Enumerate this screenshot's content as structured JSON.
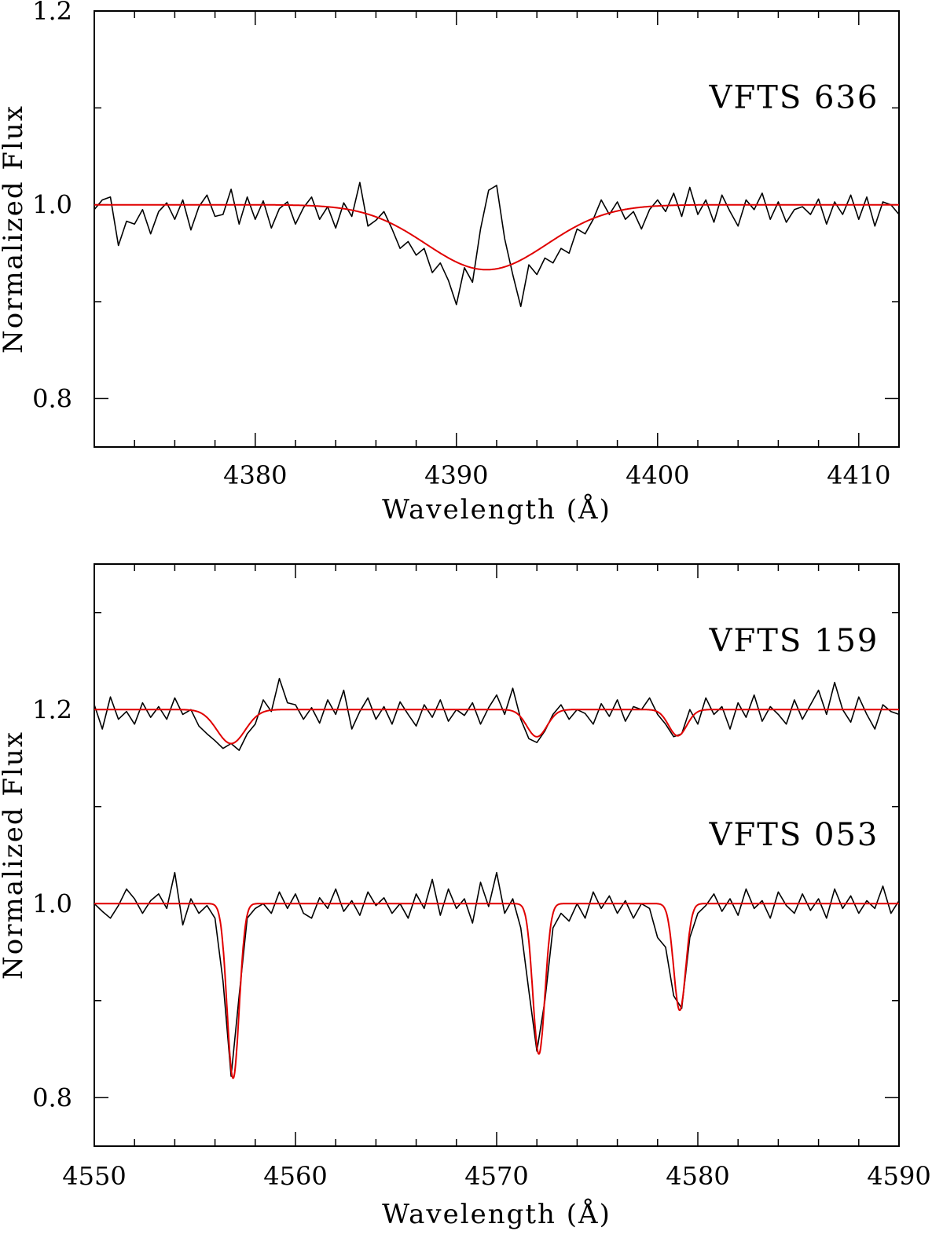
{
  "chart_data": [
    {
      "type": "line",
      "xlabel": "Wavelength (Å)",
      "ylabel": "Normalized Flux",
      "xlim": [
        4372,
        4412
      ],
      "ylim": [
        0.75,
        1.2
      ],
      "xticks": [
        4380,
        4390,
        4400,
        4410
      ],
      "xtick_labels": [
        "4380",
        "4390",
        "4400",
        "4410"
      ],
      "x_minor_step": 2,
      "yticks": [
        0.8,
        1.0,
        1.2
      ],
      "ytick_labels": [
        "0.8",
        "1.0",
        "1.2"
      ],
      "y_minor_step": 0.1,
      "grid": false,
      "annotations": [
        {
          "text": "VFTS 636",
          "x": 4411,
          "y": 1.1
        }
      ],
      "series": [
        {
          "name": "VFTS 636 observed",
          "color": "#000000",
          "x_start": 4372.0,
          "x_step": 0.4,
          "y": [
            0.995,
            1.005,
            1.008,
            0.958,
            0.983,
            0.98,
            0.995,
            0.97,
            0.993,
            1.002,
            0.985,
            1.005,
            0.974,
            0.998,
            1.01,
            0.988,
            0.99,
            1.016,
            0.98,
            1.008,
            0.985,
            1.004,
            0.976,
            0.996,
            1.003,
            0.98,
            0.997,
            1.008,
            0.985,
            0.998,
            0.976,
            1.002,
            0.988,
            1.023,
            0.978,
            0.984,
            0.993,
            0.975,
            0.955,
            0.962,
            0.948,
            0.955,
            0.93,
            0.94,
            0.922,
            0.897,
            0.935,
            0.92,
            0.975,
            1.015,
            1.02,
            0.965,
            0.928,
            0.895,
            0.938,
            0.928,
            0.945,
            0.94,
            0.955,
            0.95,
            0.975,
            0.97,
            0.985,
            1.005,
            0.99,
            1.003,
            0.985,
            0.993,
            0.975,
            0.995,
            1.005,
            0.993,
            1.012,
            0.988,
            1.018,
            0.99,
            1.005,
            0.982,
            1.01,
            0.993,
            0.978,
            1.005,
            0.995,
            1.012,
            0.985,
            1.003,
            0.982,
            0.995,
            0.998,
            0.99,
            1.006,
            0.98,
            1.003,
            0.99,
            1.01,
            0.985,
            1.008,
            0.978,
            1.003,
            1.0,
            0.99
          ]
        },
        {
          "name": "VFTS 636 model",
          "color": "#e00000",
          "continuum": 1.0,
          "lines": [
            {
              "center": 4391.5,
              "depth": 0.067,
              "sigma": 3.0
            }
          ]
        }
      ]
    },
    {
      "type": "line",
      "xlabel": "Wavelength (Å)",
      "ylabel": "Normalized Flux",
      "xlim": [
        4550,
        4590
      ],
      "ylim": [
        0.75,
        1.35
      ],
      "xticks": [
        4550,
        4560,
        4570,
        4580,
        4590
      ],
      "xtick_labels": [
        "4550",
        "4560",
        "4570",
        "4580",
        "4590"
      ],
      "x_minor_step": 2,
      "yticks": [
        0.8,
        1.0,
        1.2
      ],
      "ytick_labels": [
        "0.8",
        "1.0",
        "1.2"
      ],
      "y_minor_step": 0.1,
      "grid": false,
      "annotations": [
        {
          "text": "VFTS 159",
          "x": 4589,
          "y": 1.26
        },
        {
          "text": "VFTS 053",
          "x": 4589,
          "y": 1.06
        }
      ],
      "series": [
        {
          "name": "VFTS 159 observed",
          "color": "#000000",
          "x_start": 4550.0,
          "x_step": 0.4,
          "y": [
            1.205,
            1.18,
            1.213,
            1.19,
            1.198,
            1.185,
            1.207,
            1.192,
            1.203,
            1.19,
            1.212,
            1.195,
            1.2,
            1.183,
            1.175,
            1.168,
            1.16,
            1.165,
            1.158,
            1.175,
            1.185,
            1.21,
            1.198,
            1.232,
            1.207,
            1.205,
            1.19,
            1.202,
            1.186,
            1.21,
            1.195,
            1.22,
            1.18,
            1.198,
            1.212,
            1.19,
            1.203,
            1.185,
            1.208,
            1.195,
            1.183,
            1.205,
            1.192,
            1.21,
            1.188,
            1.2,
            1.194,
            1.207,
            1.185,
            1.202,
            1.215,
            1.195,
            1.222,
            1.19,
            1.17,
            1.166,
            1.178,
            1.195,
            1.205,
            1.19,
            1.2,
            1.196,
            1.185,
            1.206,
            1.193,
            1.21,
            1.188,
            1.203,
            1.2,
            1.212,
            1.195,
            1.185,
            1.172,
            1.175,
            1.2,
            1.185,
            1.212,
            1.195,
            1.203,
            1.18,
            1.207,
            1.192,
            1.215,
            1.188,
            1.203,
            1.195,
            1.185,
            1.21,
            1.19,
            1.205,
            1.22,
            1.195,
            1.228,
            1.2,
            1.187,
            1.213,
            1.195,
            1.18,
            1.205,
            1.198,
            1.195
          ]
        },
        {
          "name": "VFTS 159 model",
          "color": "#e00000",
          "continuum": 1.2,
          "lines": [
            {
              "center": 4556.8,
              "depth": 0.035,
              "sigma": 0.7
            },
            {
              "center": 4572.0,
              "depth": 0.028,
              "sigma": 0.5
            },
            {
              "center": 4579.0,
              "depth": 0.027,
              "sigma": 0.45
            }
          ]
        },
        {
          "name": "VFTS 053 observed",
          "color": "#000000",
          "x_start": 4550.0,
          "x_step": 0.4,
          "y": [
            1.0,
            0.992,
            0.985,
            0.998,
            1.015,
            1.005,
            0.99,
            1.003,
            1.01,
            0.995,
            1.032,
            0.978,
            1.005,
            0.99,
            0.998,
            0.985,
            0.92,
            0.822,
            0.905,
            0.985,
            0.995,
            1.0,
            0.99,
            1.012,
            0.995,
            1.01,
            0.99,
            0.985,
            1.006,
            0.995,
            1.015,
            0.992,
            1.003,
            0.988,
            1.012,
            0.998,
            1.006,
            0.99,
            1.0,
            0.985,
            1.01,
            0.995,
            1.025,
            0.988,
            1.015,
            0.995,
            1.005,
            0.98,
            1.022,
            0.997,
            1.032,
            0.99,
            1.005,
            0.975,
            0.91,
            0.848,
            0.9,
            0.975,
            0.99,
            0.982,
            1.0,
            0.985,
            1.012,
            0.995,
            1.008,
            0.99,
            1.003,
            0.985,
            1.0,
            0.995,
            0.965,
            0.955,
            0.905,
            0.892,
            0.965,
            0.99,
            0.998,
            1.01,
            0.992,
            1.005,
            0.988,
            1.015,
            0.995,
            1.003,
            0.985,
            1.012,
            0.998,
            0.99,
            1.01,
            0.993,
            1.005,
            0.985,
            1.015,
            0.995,
            1.008,
            0.99,
            1.003,
            0.995,
            1.018,
            0.99,
            1.003
          ]
        },
        {
          "name": "VFTS 053 model",
          "color": "#e00000",
          "continuum": 1.0,
          "lines": [
            {
              "center": 4556.9,
              "depth": 0.18,
              "sigma": 0.3
            },
            {
              "center": 4572.1,
              "depth": 0.155,
              "sigma": 0.3
            },
            {
              "center": 4579.1,
              "depth": 0.11,
              "sigma": 0.3
            }
          ]
        }
      ]
    }
  ]
}
